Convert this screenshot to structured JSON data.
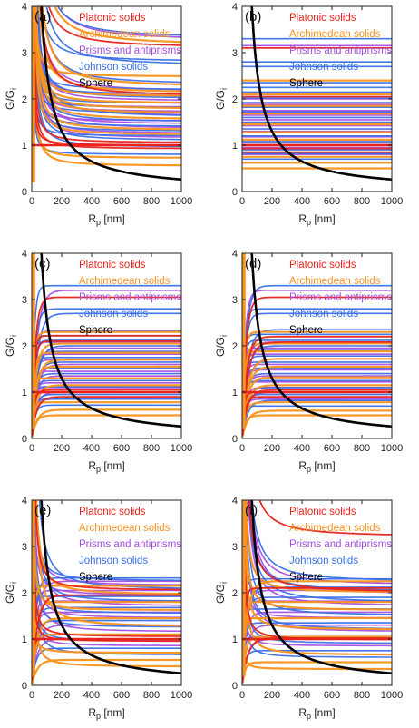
{
  "chart_data": [
    {
      "type": "line",
      "panel_label": "(a)",
      "xlabel": "R",
      "xlabel_sub": "p",
      "xlabel_unit": " [nm]",
      "ylabel": "G/G",
      "ylabel_sub": "i",
      "xlim": [
        0,
        1000
      ],
      "ylim": [
        0,
        4
      ],
      "x_ticks": [
        "0",
        "200",
        "400",
        "600",
        "800",
        "1000"
      ],
      "y_ticks": [
        "0",
        "1",
        "2",
        "3",
        "4"
      ],
      "legend": [
        "Platonic solids",
        "Archimedean solids",
        "Prisms and antiprisms",
        "Johnson solids",
        "Sphere"
      ],
      "behavior": "diverge",
      "sphere_curve": [
        [
          60,
          4.2
        ],
        [
          100,
          3.0
        ],
        [
          150,
          2.1
        ],
        [
          200,
          1.65
        ],
        [
          300,
          1.1
        ],
        [
          400,
          0.85
        ],
        [
          500,
          0.68
        ],
        [
          600,
          0.56
        ],
        [
          800,
          0.42
        ],
        [
          1000,
          0.26
        ]
      ],
      "shape_asymptotes": {
        "platonic": [
          1.0,
          0.92,
          1.05,
          2.05,
          3.1
        ],
        "archimedean": [
          0.55,
          0.72,
          1.22,
          1.32,
          1.55,
          1.68,
          1.78,
          1.9,
          2.05,
          2.12,
          2.25,
          2.48,
          3.15
        ],
        "prisms": [
          1.15,
          1.25,
          1.35,
          1.45,
          1.52,
          1.62,
          1.72,
          1.82,
          1.95,
          2.05,
          2.15,
          3.25
        ],
        "johnson": [
          0.8,
          0.95,
          1.1,
          1.2,
          1.3,
          1.4,
          1.5,
          1.6,
          1.7,
          1.8,
          1.9,
          2.0,
          2.1,
          2.2,
          2.3,
          2.7,
          2.8,
          3.3
        ]
      }
    },
    {
      "type": "line",
      "panel_label": "(b)",
      "xlabel": "R",
      "xlabel_sub": "p",
      "xlabel_unit": " [nm]",
      "ylabel": "G/G",
      "ylabel_sub": "i",
      "xlim": [
        0,
        1000
      ],
      "ylim": [
        0,
        4
      ],
      "x_ticks": [
        "0",
        "200",
        "400",
        "600",
        "800",
        "1000"
      ],
      "y_ticks": [
        "0",
        "1",
        "2",
        "3",
        "4"
      ],
      "legend": [
        "Platonic solids",
        "Archimedean solids",
        "Prisms and antiprisms",
        "Johnson solids",
        "Sphere"
      ],
      "behavior": "flat",
      "sphere_curve": [
        [
          60,
          4.2
        ],
        [
          100,
          3.0
        ],
        [
          150,
          2.1
        ],
        [
          200,
          1.65
        ],
        [
          300,
          1.1
        ],
        [
          400,
          0.85
        ],
        [
          500,
          0.68
        ],
        [
          600,
          0.56
        ],
        [
          800,
          0.42
        ],
        [
          1000,
          0.26
        ]
      ],
      "shape_asymptotes": {
        "platonic": [
          0.85,
          0.93,
          1.0,
          2.05,
          3.1
        ],
        "archimedean": [
          0.5,
          0.62,
          0.75,
          1.12,
          1.28,
          1.45,
          1.68,
          1.85,
          2.1,
          2.4
        ],
        "prisms": [
          0.8,
          0.95,
          1.05,
          1.18,
          1.3,
          1.42,
          1.55,
          1.65,
          1.75,
          1.88,
          2.0,
          3.15
        ],
        "johnson": [
          0.7,
          0.82,
          0.9,
          1.08,
          1.2,
          1.35,
          1.5,
          1.6,
          1.72,
          1.82,
          1.92,
          2.02,
          2.15,
          2.25,
          2.35,
          2.7,
          2.8,
          3.3
        ]
      }
    },
    {
      "type": "line",
      "panel_label": "(c)",
      "xlabel": "R",
      "xlabel_sub": "p",
      "xlabel_unit": " [nm]",
      "ylabel": "G/G",
      "ylabel_sub": "i",
      "xlim": [
        0,
        1000
      ],
      "ylim": [
        0,
        4
      ],
      "x_ticks": [
        "0",
        "200",
        "400",
        "600",
        "800",
        "1000"
      ],
      "y_ticks": [
        "0",
        "1",
        "2",
        "3",
        "4"
      ],
      "legend": [
        "Platonic solids",
        "Archimedean solids",
        "Prisms and antiprisms",
        "Johnson solids",
        "Sphere"
      ],
      "behavior": "rise",
      "sphere_curve": [
        [
          60,
          4.2
        ],
        [
          100,
          3.0
        ],
        [
          150,
          2.1
        ],
        [
          200,
          1.65
        ],
        [
          300,
          1.1
        ],
        [
          400,
          0.85
        ],
        [
          500,
          0.68
        ],
        [
          600,
          0.56
        ],
        [
          800,
          0.42
        ],
        [
          1000,
          0.26
        ]
      ],
      "shape_asymptotes": {
        "platonic": [
          0.9,
          1.0,
          1.05,
          2.1,
          2.22,
          3.05
        ],
        "archimedean": [
          0.5,
          0.62,
          0.78,
          1.15,
          1.3,
          1.55,
          1.7,
          1.85,
          2.05,
          2.3
        ],
        "prisms": [
          0.85,
          1.0,
          1.1,
          1.2,
          1.35,
          1.45,
          1.6,
          1.7,
          1.82,
          1.95,
          2.08,
          3.2
        ],
        "johnson": [
          0.72,
          0.85,
          0.95,
          1.12,
          1.25,
          1.4,
          1.52,
          1.65,
          1.75,
          1.88,
          2.0,
          2.12,
          2.22,
          2.32,
          2.7,
          2.8,
          3.3
        ]
      }
    },
    {
      "type": "line",
      "panel_label": "(d)",
      "xlabel": "R",
      "xlabel_sub": "p",
      "xlabel_unit": " [nm]",
      "ylabel": "G/G",
      "ylabel_sub": "i",
      "xlim": [
        0,
        1000
      ],
      "ylim": [
        0,
        4
      ],
      "x_ticks": [
        "0",
        "200",
        "400",
        "600",
        "800",
        "1000"
      ],
      "y_ticks": [
        "0",
        "1",
        "2",
        "3",
        "4"
      ],
      "legend": [
        "Platonic solids",
        "Archimedean solids",
        "Prisms and antiprisms",
        "Johnson solids",
        "Sphere"
      ],
      "behavior": "rise",
      "sphere_curve": [
        [
          60,
          4.2
        ],
        [
          100,
          3.0
        ],
        [
          150,
          2.1
        ],
        [
          200,
          1.65
        ],
        [
          300,
          1.1
        ],
        [
          400,
          0.85
        ],
        [
          500,
          0.68
        ],
        [
          600,
          0.56
        ],
        [
          800,
          0.42
        ],
        [
          1000,
          0.26
        ]
      ],
      "shape_asymptotes": {
        "platonic": [
          0.9,
          1.0,
          1.05,
          2.08,
          2.2,
          3.05
        ],
        "archimedean": [
          0.5,
          0.6,
          0.78,
          1.15,
          1.32,
          1.55,
          1.72,
          1.88,
          2.05,
          2.3
        ],
        "prisms": [
          0.85,
          1.0,
          1.1,
          1.22,
          1.35,
          1.48,
          1.6,
          1.72,
          1.82,
          1.95,
          2.08,
          3.2
        ],
        "johnson": [
          0.7,
          0.82,
          0.95,
          1.1,
          1.25,
          1.4,
          1.52,
          1.65,
          1.78,
          1.9,
          2.0,
          2.12,
          2.25,
          2.35,
          2.7,
          2.8,
          3.3
        ]
      }
    },
    {
      "type": "line",
      "panel_label": "(e)",
      "xlabel": "R",
      "xlabel_sub": "p",
      "xlabel_unit": " [nm]",
      "ylabel": "G/G",
      "ylabel_sub": "i",
      "xlim": [
        0,
        1000
      ],
      "ylim": [
        0,
        4
      ],
      "x_ticks": [
        "0",
        "200",
        "400",
        "600",
        "800",
        "1000"
      ],
      "y_ticks": [
        "0",
        "1",
        "2",
        "3",
        "4"
      ],
      "legend": [
        "Platonic solids",
        "Archimedean solids",
        "Prisms and antiprisms",
        "Johnson solids",
        "Sphere"
      ],
      "behavior": "mixed",
      "sphere_curve": [
        [
          60,
          4.2
        ],
        [
          100,
          3.0
        ],
        [
          150,
          2.1
        ],
        [
          200,
          1.65
        ],
        [
          300,
          1.1
        ],
        [
          400,
          0.85
        ],
        [
          500,
          0.68
        ],
        [
          600,
          0.56
        ],
        [
          800,
          0.42
        ],
        [
          1000,
          0.26
        ]
      ],
      "shape_asymptotes": {
        "platonic": [
          0.95,
          1.0,
          1.05,
          1.95,
          2.05
        ],
        "archimedean": [
          0.4,
          0.55,
          0.7,
          1.1,
          1.25,
          1.45,
          1.62,
          1.8,
          1.95,
          2.15
        ],
        "prisms": [
          0.85,
          1.0,
          1.15,
          1.3,
          1.45,
          1.58,
          1.7,
          1.82,
          1.95,
          2.05,
          2.15,
          2.25
        ],
        "johnson": [
          0.65,
          0.8,
          0.95,
          1.1,
          1.25,
          1.4,
          1.55,
          1.68,
          1.8,
          1.92,
          2.05,
          2.15,
          2.25,
          2.32
        ]
      }
    },
    {
      "type": "line",
      "panel_label": "(f)",
      "xlabel": "R",
      "xlabel_sub": "p",
      "xlabel_unit": " [nm]",
      "ylabel": "G/G",
      "ylabel_sub": "i",
      "xlim": [
        0,
        1000
      ],
      "ylim": [
        0,
        4
      ],
      "x_ticks": [
        "0",
        "200",
        "400",
        "600",
        "800",
        "1000"
      ],
      "y_ticks": [
        "0",
        "1",
        "2",
        "3",
        "4"
      ],
      "legend": [
        "Platonic solids",
        "Archimedean solids",
        "Prisms and antiprisms",
        "Johnson solids",
        "Sphere"
      ],
      "behavior": "mixed",
      "sphere_curve": [
        [
          60,
          4.2
        ],
        [
          100,
          3.0
        ],
        [
          150,
          2.1
        ],
        [
          200,
          1.65
        ],
        [
          300,
          1.1
        ],
        [
          400,
          0.85
        ],
        [
          500,
          0.68
        ],
        [
          600,
          0.56
        ],
        [
          800,
          0.42
        ],
        [
          1000,
          0.26
        ]
      ],
      "shape_asymptotes": {
        "platonic": [
          0.98,
          1.02,
          2.0,
          2.1,
          3.2
        ],
        "archimedean": [
          0.35,
          0.5,
          0.65,
          1.05,
          1.2,
          1.45,
          1.62,
          1.8,
          2.0,
          2.25
        ],
        "prisms": [
          0.85,
          1.0,
          1.15,
          1.3,
          1.45,
          1.58,
          1.7,
          1.82,
          1.95,
          2.05,
          2.15
        ],
        "johnson": [
          0.6,
          0.75,
          0.9,
          1.05,
          1.2,
          1.35,
          1.5,
          1.65,
          1.78,
          1.9,
          2.02,
          2.12,
          2.22,
          2.3
        ]
      }
    }
  ],
  "colors": {
    "platonic": "#e8231c",
    "archimedean": "#f7931e",
    "prisms": "#a64fe0",
    "johnson": "#3a6fe8",
    "sphere": "#000000",
    "unity": "#e8231c"
  }
}
